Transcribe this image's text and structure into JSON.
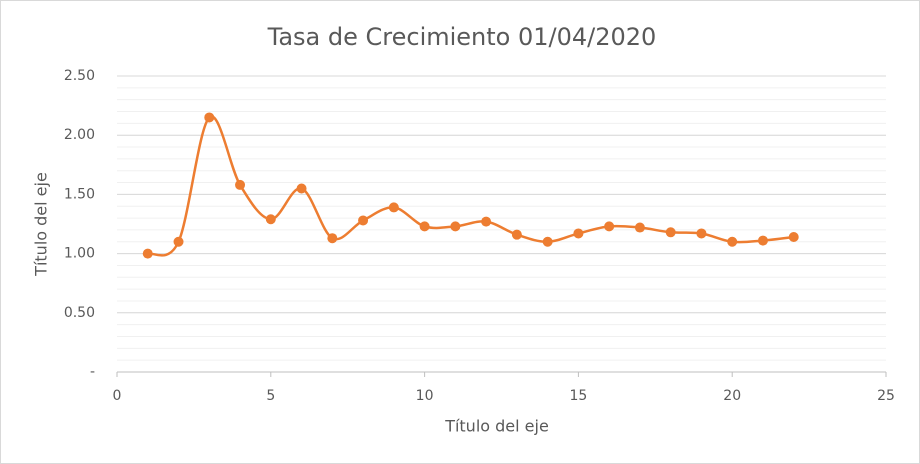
{
  "chart_data": {
    "type": "scatter-smooth",
    "title": "Tasa de Crecimiento 01/04/2020",
    "x_label": "Título del eje",
    "y_label": "Título del eje",
    "series": [
      {
        "color": "#ed7d31",
        "x": [
          1,
          2,
          3,
          4,
          5,
          6,
          7,
          8,
          9,
          10,
          11,
          12,
          13,
          14,
          15,
          16,
          17,
          18,
          19,
          20,
          21,
          22
        ],
        "values": [
          1.0,
          1.1,
          2.15,
          1.58,
          1.29,
          1.55,
          1.13,
          1.28,
          1.39,
          1.23,
          1.23,
          1.27,
          1.16,
          1.1,
          1.17,
          1.23,
          1.22,
          1.18,
          1.17,
          1.1,
          1.11,
          1.14
        ]
      }
    ],
    "xlim": [
      0,
      25
    ],
    "xticks": [
      0,
      5,
      10,
      15,
      20,
      25
    ],
    "ylim": [
      0,
      2.5
    ],
    "yticks": [
      {
        "value": 0,
        "label": "-"
      },
      {
        "value": 0.5,
        "label": "0.50"
      },
      {
        "value": 1,
        "label": "1.00"
      },
      {
        "value": 1.5,
        "label": "1.50"
      },
      {
        "value": 2,
        "label": "2.00"
      },
      {
        "value": 2.5,
        "label": "2.50"
      }
    ],
    "grid": true,
    "minor_grid": true
  }
}
